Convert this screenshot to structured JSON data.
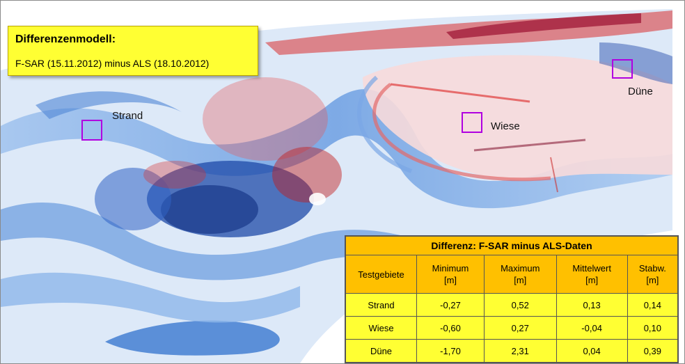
{
  "title_box": {
    "title": "Differenzenmodell:",
    "subtitle": "F-SAR (15.11.2012) minus ALS (18.10.2012)"
  },
  "sites": [
    {
      "label": "Strand"
    },
    {
      "label": "Wiese"
    },
    {
      "label": "Düne"
    }
  ],
  "table": {
    "caption": "Differenz: F-SAR minus ALS-Daten",
    "headers": [
      {
        "name": "Testgebiete",
        "unit": ""
      },
      {
        "name": "Minimum",
        "unit": "[m]"
      },
      {
        "name": "Maximum",
        "unit": "[m]"
      },
      {
        "name": "Mittelwert",
        "unit": "[m]"
      },
      {
        "name": "Stabw.",
        "unit": "[m]"
      }
    ],
    "rows": [
      {
        "name": "Strand",
        "min": "-0,27",
        "max": "0,52",
        "mean": "0,13",
        "std": "0,14"
      },
      {
        "name": "Wiese",
        "min": "-0,60",
        "max": "0,27",
        "mean": "-0,04",
        "std": "0,10"
      },
      {
        "name": "Düne",
        "min": "-1,70",
        "max": "2,31",
        "mean": "0,04",
        "std": "0,39"
      }
    ]
  },
  "colors": {
    "positive": "#d42020",
    "negative": "#1f5fc8",
    "label_fill": "#ffff33",
    "header_fill": "#ffc000",
    "site_outline": "#b000e0"
  }
}
